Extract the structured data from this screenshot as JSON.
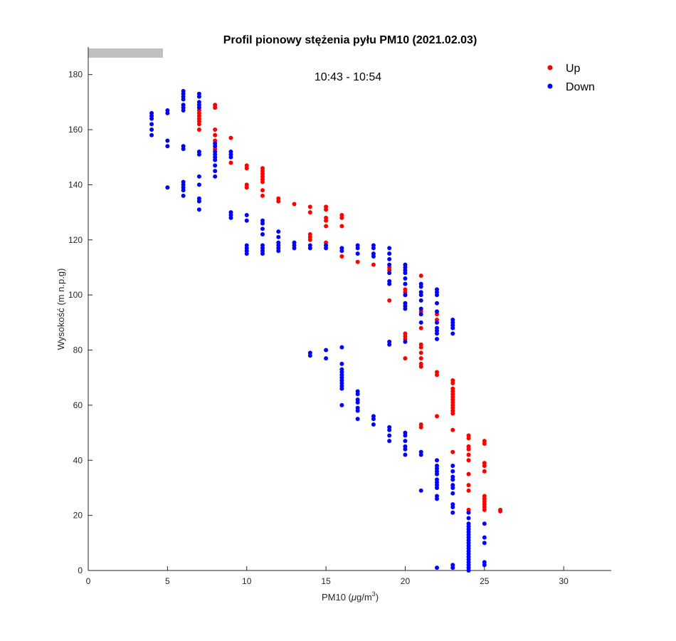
{
  "chart_data": {
    "type": "scatter",
    "title": "Profil pionowy stężenia pyłu PM10 (2021.02.03)",
    "subtitle": "10:43 - 10:54",
    "xlabel_main": "PM10 (",
    "xlabel_mu": "μ",
    "xlabel_unit": "g/m",
    "xlabel_sup": "3",
    "xlabel_close": ")",
    "ylabel": "Wysokość (m n.p.g)",
    "xlim": [
      0,
      33
    ],
    "ylim": [
      0,
      190
    ],
    "xticks": [
      0,
      5,
      10,
      15,
      20,
      25,
      30
    ],
    "yticks": [
      0,
      20,
      40,
      60,
      80,
      100,
      120,
      140,
      160,
      180
    ],
    "grid": false,
    "legend_position": "top-right",
    "series": [
      {
        "name": "Up",
        "color": "#ff0000",
        "points": [
          [
            7,
            167
          ],
          [
            7,
            166
          ],
          [
            7,
            165
          ],
          [
            7,
            164
          ],
          [
            7,
            163
          ],
          [
            7,
            162
          ],
          [
            7,
            160
          ],
          [
            8,
            169
          ],
          [
            8,
            168
          ],
          [
            8,
            160
          ],
          [
            8,
            158
          ],
          [
            8,
            156
          ],
          [
            8,
            153
          ],
          [
            9,
            157
          ],
          [
            9,
            148
          ],
          [
            10,
            147
          ],
          [
            10,
            146
          ],
          [
            10,
            140
          ],
          [
            10,
            139
          ],
          [
            11,
            146
          ],
          [
            11,
            145
          ],
          [
            11,
            144
          ],
          [
            11,
            143
          ],
          [
            11,
            142
          ],
          [
            11,
            141
          ],
          [
            11,
            138
          ],
          [
            11,
            136
          ],
          [
            12,
            135
          ],
          [
            12,
            134
          ],
          [
            13,
            133
          ],
          [
            14,
            132
          ],
          [
            14,
            130
          ],
          [
            14,
            122
          ],
          [
            14,
            121
          ],
          [
            14,
            120
          ],
          [
            15,
            132
          ],
          [
            15,
            131
          ],
          [
            15,
            128
          ],
          [
            15,
            127
          ],
          [
            15,
            125
          ],
          [
            15,
            119
          ],
          [
            16,
            129
          ],
          [
            16,
            128
          ],
          [
            16,
            125
          ],
          [
            16,
            114
          ],
          [
            17,
            112
          ],
          [
            18,
            111
          ],
          [
            19,
            110
          ],
          [
            19,
            109
          ],
          [
            19,
            98
          ],
          [
            20,
            104
          ],
          [
            20,
            102
          ],
          [
            20,
            101
          ],
          [
            20,
            100
          ],
          [
            20,
            97
          ],
          [
            20,
            86
          ],
          [
            20,
            85
          ],
          [
            20,
            84
          ],
          [
            20,
            77
          ],
          [
            21,
            107
          ],
          [
            21,
            94
          ],
          [
            21,
            88
          ],
          [
            21,
            82
          ],
          [
            21,
            81
          ],
          [
            21,
            79
          ],
          [
            21,
            77
          ],
          [
            21,
            75
          ],
          [
            21,
            74
          ],
          [
            21,
            53
          ],
          [
            21,
            52
          ],
          [
            22,
            93
          ],
          [
            22,
            91
          ],
          [
            22,
            72
          ],
          [
            22,
            71
          ],
          [
            22,
            56
          ],
          [
            23,
            69
          ],
          [
            23,
            68
          ],
          [
            23,
            66
          ],
          [
            23,
            65
          ],
          [
            23,
            64
          ],
          [
            23,
            63
          ],
          [
            23,
            62
          ],
          [
            23,
            61
          ],
          [
            23,
            60
          ],
          [
            23,
            59
          ],
          [
            23,
            58
          ],
          [
            23,
            57
          ],
          [
            23,
            51
          ],
          [
            23,
            43
          ],
          [
            24,
            49
          ],
          [
            24,
            48
          ],
          [
            24,
            45
          ],
          [
            24,
            44
          ],
          [
            24,
            42
          ],
          [
            24,
            40
          ],
          [
            24,
            35
          ],
          [
            24,
            31
          ],
          [
            24,
            29
          ],
          [
            24,
            22
          ],
          [
            25,
            47
          ],
          [
            25,
            46
          ],
          [
            25,
            39
          ],
          [
            25,
            38
          ],
          [
            25,
            36
          ],
          [
            25,
            27
          ],
          [
            25,
            26
          ],
          [
            25,
            25
          ],
          [
            25,
            24
          ],
          [
            25,
            23
          ],
          [
            25,
            22
          ],
          [
            26,
            22
          ],
          [
            26,
            21.5
          ]
        ]
      },
      {
        "name": "Down",
        "color": "#0000ff",
        "points": [
          [
            4,
            166
          ],
          [
            4,
            165
          ],
          [
            4,
            164
          ],
          [
            4,
            162
          ],
          [
            4,
            160
          ],
          [
            4,
            158
          ],
          [
            5,
            167
          ],
          [
            5,
            166
          ],
          [
            5,
            156
          ],
          [
            5,
            154
          ],
          [
            5,
            139
          ],
          [
            6,
            174
          ],
          [
            6,
            173
          ],
          [
            6,
            172
          ],
          [
            6,
            171
          ],
          [
            6,
            169
          ],
          [
            6,
            168
          ],
          [
            6,
            167
          ],
          [
            6,
            154
          ],
          [
            6,
            153
          ],
          [
            6,
            141
          ],
          [
            6,
            140
          ],
          [
            6,
            139
          ],
          [
            6,
            138
          ],
          [
            6,
            136
          ],
          [
            7,
            173
          ],
          [
            7,
            172
          ],
          [
            7,
            170
          ],
          [
            7,
            169
          ],
          [
            7,
            168
          ],
          [
            7,
            152
          ],
          [
            7,
            151
          ],
          [
            7,
            143
          ],
          [
            7,
            140
          ],
          [
            7,
            135
          ],
          [
            7,
            134
          ],
          [
            7,
            131
          ],
          [
            8,
            155
          ],
          [
            8,
            154
          ],
          [
            8,
            152
          ],
          [
            8,
            151
          ],
          [
            8,
            150
          ],
          [
            8,
            149
          ],
          [
            8,
            147
          ],
          [
            8,
            145
          ],
          [
            8,
            143
          ],
          [
            9,
            152
          ],
          [
            9,
            151
          ],
          [
            9,
            150
          ],
          [
            9,
            130
          ],
          [
            9,
            129
          ],
          [
            9,
            128
          ],
          [
            10,
            129
          ],
          [
            10,
            127
          ],
          [
            10,
            118
          ],
          [
            10,
            117
          ],
          [
            10,
            116
          ],
          [
            10,
            115
          ],
          [
            11,
            127
          ],
          [
            11,
            126
          ],
          [
            11,
            124
          ],
          [
            11,
            122
          ],
          [
            11,
            118
          ],
          [
            11,
            117
          ],
          [
            11,
            116
          ],
          [
            11,
            115
          ],
          [
            12,
            123
          ],
          [
            12,
            121
          ],
          [
            12,
            119
          ],
          [
            12,
            118
          ],
          [
            12,
            117
          ],
          [
            12,
            116
          ],
          [
            13,
            119
          ],
          [
            13,
            118
          ],
          [
            13,
            117
          ],
          [
            14,
            118
          ],
          [
            14,
            117
          ],
          [
            14,
            79
          ],
          [
            14,
            78
          ],
          [
            15,
            118
          ],
          [
            15,
            117
          ],
          [
            15,
            80
          ],
          [
            15,
            77
          ],
          [
            16,
            117
          ],
          [
            16,
            116
          ],
          [
            16,
            81
          ],
          [
            16,
            75
          ],
          [
            16,
            73
          ],
          [
            16,
            72
          ],
          [
            16,
            71
          ],
          [
            16,
            70
          ],
          [
            16,
            69
          ],
          [
            16,
            68
          ],
          [
            16,
            67
          ],
          [
            16,
            66
          ],
          [
            16,
            60
          ],
          [
            17,
            118
          ],
          [
            17,
            117
          ],
          [
            17,
            115
          ],
          [
            17,
            65
          ],
          [
            17,
            64
          ],
          [
            17,
            62
          ],
          [
            17,
            61
          ],
          [
            17,
            59
          ],
          [
            17,
            58
          ],
          [
            17,
            55
          ],
          [
            18,
            118
          ],
          [
            18,
            117
          ],
          [
            18,
            115
          ],
          [
            18,
            114
          ],
          [
            18,
            56
          ],
          [
            18,
            55
          ],
          [
            18,
            53
          ],
          [
            19,
            117
          ],
          [
            19,
            115
          ],
          [
            19,
            113
          ],
          [
            19,
            111
          ],
          [
            19,
            108
          ],
          [
            19,
            105
          ],
          [
            19,
            104
          ],
          [
            19,
            83
          ],
          [
            19,
            82
          ],
          [
            19,
            52
          ],
          [
            19,
            51
          ],
          [
            19,
            49
          ],
          [
            19,
            47
          ],
          [
            20,
            111
          ],
          [
            20,
            110
          ],
          [
            20,
            109
          ],
          [
            20,
            108
          ],
          [
            20,
            106
          ],
          [
            20,
            104
          ],
          [
            20,
            100
          ],
          [
            20,
            97
          ],
          [
            20,
            96
          ],
          [
            20,
            95
          ],
          [
            20,
            83
          ],
          [
            20,
            50
          ],
          [
            20,
            49
          ],
          [
            20,
            47
          ],
          [
            20,
            45
          ],
          [
            20,
            44
          ],
          [
            20,
            42
          ],
          [
            21,
            104
          ],
          [
            21,
            103
          ],
          [
            21,
            101
          ],
          [
            21,
            100
          ],
          [
            21,
            98
          ],
          [
            21,
            95
          ],
          [
            21,
            93
          ],
          [
            21,
            90
          ],
          [
            21,
            43
          ],
          [
            21,
            42
          ],
          [
            21,
            29
          ],
          [
            22,
            102
          ],
          [
            22,
            101
          ],
          [
            22,
            100
          ],
          [
            22,
            97
          ],
          [
            22,
            94
          ],
          [
            22,
            90
          ],
          [
            22,
            88
          ],
          [
            22,
            87
          ],
          [
            22,
            86
          ],
          [
            22,
            84
          ],
          [
            22,
            40
          ],
          [
            22,
            38
          ],
          [
            22,
            37
          ],
          [
            22,
            36
          ],
          [
            22,
            35
          ],
          [
            22,
            33
          ],
          [
            22,
            32
          ],
          [
            22,
            31
          ],
          [
            22,
            30
          ],
          [
            22,
            27
          ],
          [
            22,
            26
          ],
          [
            22,
            1
          ],
          [
            23,
            91
          ],
          [
            23,
            90
          ],
          [
            23,
            89
          ],
          [
            23,
            88
          ],
          [
            23,
            86
          ],
          [
            23,
            38
          ],
          [
            23,
            36
          ],
          [
            23,
            34
          ],
          [
            23,
            33
          ],
          [
            23,
            31
          ],
          [
            23,
            30
          ],
          [
            23,
            28
          ],
          [
            23,
            24
          ],
          [
            23,
            23
          ],
          [
            23,
            21
          ],
          [
            23,
            2
          ],
          [
            23,
            1
          ],
          [
            24,
            21
          ],
          [
            24,
            19
          ],
          [
            24,
            17
          ],
          [
            24,
            16
          ],
          [
            24,
            15
          ],
          [
            24,
            14
          ],
          [
            24,
            13
          ],
          [
            24,
            12
          ],
          [
            24,
            11
          ],
          [
            24,
            10
          ],
          [
            24,
            9
          ],
          [
            24,
            8
          ],
          [
            24,
            7
          ],
          [
            24,
            6
          ],
          [
            24,
            5
          ],
          [
            24,
            4
          ],
          [
            24,
            3
          ],
          [
            24,
            2
          ],
          [
            24,
            1
          ],
          [
            24,
            0
          ],
          [
            25,
            17
          ],
          [
            25,
            12
          ],
          [
            25,
            10
          ],
          [
            25,
            3
          ],
          [
            25,
            2
          ]
        ]
      }
    ]
  }
}
